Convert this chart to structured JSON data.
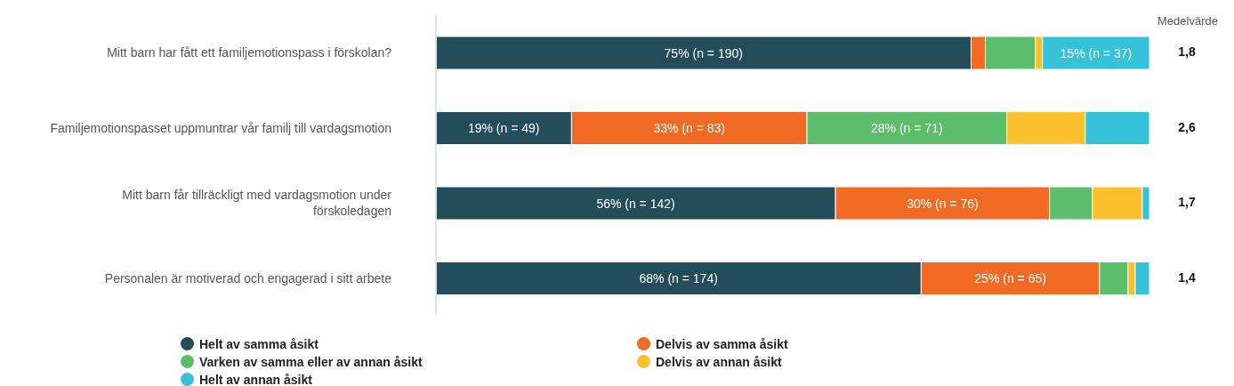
{
  "chart_data": {
    "type": "bar",
    "orientation": "horizontal",
    "stacked": true,
    "categories": [
      "Mitt barn har fått ett familjemotionspass i förskolan?",
      "Familjemotionspasset uppmuntrar vår familj till vardagsmotion",
      "Mitt barn får tillräckligt med vardagsmotion under förskoledagen",
      "Personalen är motiverad och engagerad i sitt arbete"
    ],
    "series": [
      {
        "name": "Helt av samma åsikt",
        "color": "#234d5b",
        "values": [
          75,
          19,
          56,
          68
        ],
        "value_labels": [
          "75% (n = 190)",
          "19% (n = 49)",
          "56% (n = 142)",
          "68% (n = 174)"
        ]
      },
      {
        "name": "Delvis av samma åsikt",
        "color": "#f26b25",
        "values": [
          2,
          33,
          30,
          25
        ],
        "value_labels": [
          null,
          "33% (n = 83)",
          "30% (n = 76)",
          "25% (n = 65)"
        ]
      },
      {
        "name": "Varken av samma eller av annan åsikt",
        "color": "#5cbd6b",
        "values": [
          7,
          28,
          6,
          4
        ],
        "value_labels": [
          null,
          "28% (n = 71)",
          null,
          null
        ]
      },
      {
        "name": "Delvis av annan åsikt",
        "color": "#fcc02f",
        "values": [
          1,
          11,
          7,
          1
        ],
        "value_labels": [
          null,
          null,
          null,
          null
        ]
      },
      {
        "name": "Helt av annan åsikt",
        "color": "#36c2d8",
        "values": [
          15,
          9,
          1,
          2
        ],
        "value_labels": [
          "15% (n = 37)",
          null,
          null,
          null
        ]
      }
    ],
    "xlim": [
      0,
      100
    ],
    "tick_labels": "y",
    "legend": "bottom",
    "annotations": [
      "Medelvärde",
      "1,8",
      "2,6",
      "1,7",
      "1,4"
    ]
  }
}
